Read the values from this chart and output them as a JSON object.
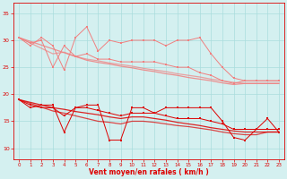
{
  "x": [
    0,
    1,
    2,
    3,
    4,
    5,
    6,
    7,
    8,
    9,
    10,
    11,
    12,
    13,
    14,
    15,
    16,
    17,
    18,
    19,
    20,
    21,
    22,
    23
  ],
  "series_light_1": [
    30.5,
    29.0,
    30.5,
    29.0,
    24.5,
    30.5,
    32.5,
    28.0,
    30.0,
    29.5,
    30.0,
    30.0,
    30.0,
    29.0,
    30.0,
    30.0,
    30.5,
    27.5,
    25.0,
    23.0,
    22.5,
    22.5,
    22.5,
    22.5
  ],
  "series_light_2": [
    30.5,
    29.5,
    30.0,
    25.0,
    29.0,
    27.0,
    27.5,
    26.5,
    26.5,
    26.0,
    26.0,
    26.0,
    26.0,
    25.5,
    25.0,
    25.0,
    24.0,
    23.5,
    22.5,
    22.0,
    22.5,
    22.5,
    22.5,
    22.5
  ],
  "series_light_trend1": [
    30.5,
    29.8,
    29.1,
    28.4,
    27.7,
    27.0,
    26.3,
    25.9,
    25.6,
    25.2,
    24.9,
    24.5,
    24.2,
    23.8,
    23.5,
    23.1,
    22.8,
    22.5,
    22.1,
    21.8,
    22.0,
    22.0,
    22.0,
    22.0
  ],
  "series_light_trend2": [
    30.5,
    29.5,
    28.5,
    27.5,
    27.8,
    27.0,
    26.5,
    26.2,
    25.8,
    25.5,
    25.2,
    24.8,
    24.5,
    24.2,
    23.8,
    23.5,
    23.2,
    22.8,
    22.5,
    22.2,
    22.0,
    22.0,
    22.0,
    22.0
  ],
  "series_dark_1": [
    19.0,
    17.5,
    18.0,
    18.0,
    13.0,
    17.5,
    18.0,
    18.0,
    11.5,
    11.5,
    17.5,
    17.5,
    16.5,
    17.5,
    17.5,
    17.5,
    17.5,
    17.5,
    15.0,
    12.0,
    11.5,
    13.5,
    15.5,
    13.0
  ],
  "series_dark_2": [
    19.0,
    18.0,
    17.5,
    17.5,
    16.0,
    17.5,
    17.5,
    17.0,
    16.5,
    16.0,
    16.5,
    16.5,
    16.5,
    16.0,
    15.5,
    15.5,
    15.5,
    15.0,
    14.5,
    13.5,
    13.5,
    13.5,
    13.5,
    13.5
  ],
  "series_dark_trend1": [
    19.0,
    18.5,
    18.0,
    17.5,
    17.2,
    16.8,
    16.5,
    16.2,
    15.8,
    15.5,
    15.8,
    15.8,
    15.5,
    15.2,
    14.8,
    14.5,
    14.2,
    13.8,
    13.5,
    13.2,
    13.0,
    13.0,
    13.0,
    13.0
  ],
  "series_dark_trend2": [
    19.0,
    18.3,
    17.6,
    16.9,
    16.5,
    16.0,
    15.5,
    15.0,
    14.8,
    14.5,
    15.0,
    15.0,
    14.8,
    14.5,
    14.2,
    14.0,
    13.7,
    13.4,
    13.0,
    12.7,
    12.5,
    12.5,
    13.0,
    13.0
  ],
  "color_light": "#f08080",
  "color_dark": "#dd0000",
  "bg_color": "#d4f0f0",
  "grid_color": "#aadddd",
  "xlabel": "Vent moyen/en rafales ( km/h )",
  "ylim": [
    8,
    37
  ],
  "yticks": [
    10,
    15,
    20,
    25,
    30,
    35
  ],
  "xticks": [
    0,
    1,
    2,
    3,
    4,
    5,
    6,
    7,
    8,
    9,
    10,
    11,
    12,
    13,
    14,
    15,
    16,
    17,
    18,
    19,
    20,
    21,
    22,
    23
  ]
}
